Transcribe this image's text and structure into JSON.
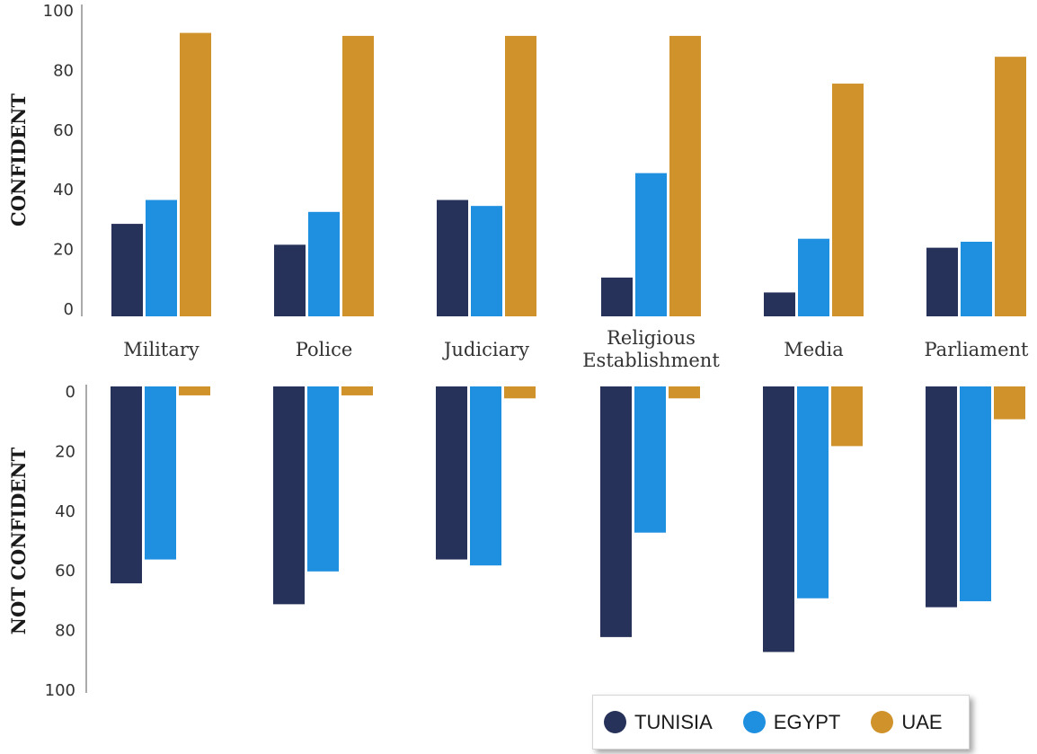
{
  "chart_data": [
    {
      "type": "bar",
      "ylabel": "CONFIDENT",
      "ylim": [
        0,
        100
      ],
      "yticks": [
        "0",
        "20",
        "40",
        "60",
        "80",
        "100"
      ],
      "categories": [
        "Military",
        "Police",
        "Judiciary",
        "Religious Establishment",
        "Media",
        "Parliament"
      ],
      "series": [
        {
          "name": "TUNISIA",
          "color": "#263259",
          "values": [
            31,
            24,
            39,
            13,
            8,
            23
          ]
        },
        {
          "name": "EGYPT",
          "color": "#1f8fe0",
          "values": [
            39,
            35,
            37,
            48,
            26,
            25
          ]
        },
        {
          "name": "UAE",
          "color": "#d0922b",
          "values": [
            95,
            94,
            94,
            94,
            78,
            87
          ]
        }
      ]
    },
    {
      "type": "bar",
      "ylabel": "NOT CONFIDENT",
      "ylim": [
        0,
        100
      ],
      "yticks": [
        "0",
        "20",
        "40",
        "60",
        "80",
        "100"
      ],
      "categories": [
        "Military",
        "Police",
        "Judiciary",
        "Religious Establishment",
        "Media",
        "Parliament"
      ],
      "series": [
        {
          "name": "TUNISIA",
          "color": "#263259",
          "values": [
            66,
            73,
            58,
            84,
            89,
            74
          ]
        },
        {
          "name": "EGYPT",
          "color": "#1f8fe0",
          "values": [
            58,
            62,
            60,
            49,
            71,
            72
          ]
        },
        {
          "name": "UAE",
          "color": "#d0922b",
          "values": [
            3,
            3,
            4,
            4,
            20,
            11
          ]
        }
      ]
    }
  ],
  "category_labels": [
    [
      "Military"
    ],
    [
      "Police"
    ],
    [
      "Judiciary"
    ],
    [
      "Religious",
      "Establishment"
    ],
    [
      "Media"
    ],
    [
      "Parliament"
    ]
  ],
  "legend": [
    {
      "label": "TUNISIA",
      "color": "#263259"
    },
    {
      "label": "EGYPT",
      "color": "#1f8fe0"
    },
    {
      "label": "UAE",
      "color": "#d0922b"
    }
  ]
}
